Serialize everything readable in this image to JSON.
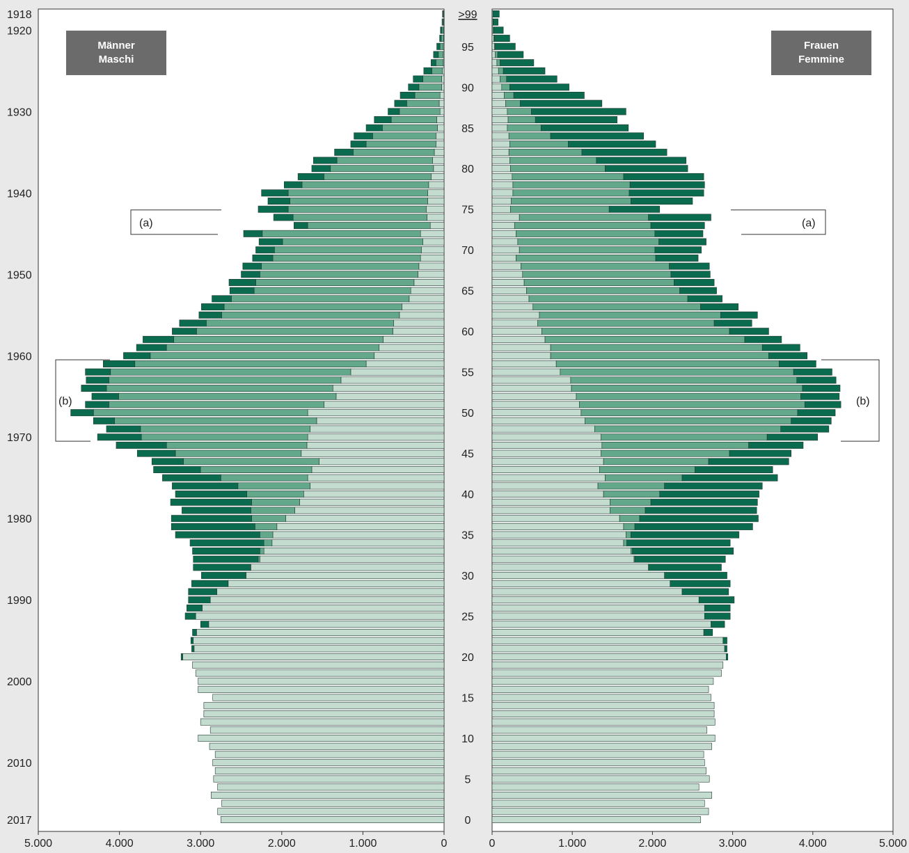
{
  "chart_data": {
    "type": "bar",
    "subtype": "population-pyramid",
    "left_label": {
      "line1": "Männer",
      "line2": "Maschi"
    },
    "right_label": {
      "line1": "Frauen",
      "line2": "Femmine"
    },
    "annotation_a": "(a)",
    "annotation_b": "(b)",
    "top_age_label": ">99",
    "birth_year_ticks": [
      "1918",
      "1920",
      "1930",
      "1940",
      "1950",
      "1960",
      "1970",
      "1980",
      "1990",
      "2000",
      "2010",
      "2017"
    ],
    "age_ticks": [
      "0",
      "5",
      "10",
      "15",
      "20",
      "25",
      "30",
      "35",
      "40",
      "45",
      "50",
      "55",
      "60",
      "65",
      "70",
      "75",
      "80",
      "85",
      "90",
      "95"
    ],
    "x_ticks_left": [
      "5.000",
      "4.000",
      "3.000",
      "2.000",
      "1.000",
      "0"
    ],
    "x_ticks_right": [
      "0",
      "1.000",
      "2.000",
      "3.000",
      "4.000",
      "5.000"
    ],
    "xlim": [
      0,
      5000
    ],
    "ages": [
      0,
      1,
      2,
      3,
      4,
      5,
      6,
      7,
      8,
      9,
      10,
      11,
      12,
      13,
      14,
      15,
      16,
      17,
      18,
      19,
      20,
      21,
      22,
      23,
      24,
      25,
      26,
      27,
      28,
      29,
      30,
      31,
      32,
      33,
      34,
      35,
      36,
      37,
      38,
      39,
      40,
      41,
      42,
      43,
      44,
      45,
      46,
      47,
      48,
      49,
      50,
      51,
      52,
      53,
      54,
      55,
      56,
      57,
      58,
      59,
      60,
      61,
      62,
      63,
      64,
      65,
      66,
      67,
      68,
      69,
      70,
      71,
      72,
      73,
      74,
      75,
      76,
      77,
      78,
      79,
      80,
      81,
      82,
      83,
      84,
      85,
      86,
      87,
      88,
      89,
      90,
      91,
      92,
      93,
      94,
      95,
      96,
      97,
      98,
      99
    ],
    "series_note": "Values per age: [light segment, mid segment, dark segment]; bar length = sum.",
    "colors": {
      "light": "#c4dbd0",
      "mid": "#64a88c",
      "dark": "#0b6b4e",
      "stroke": "#233a31",
      "background": "#e8e9e8",
      "panel": "#ffffff",
      "label_box": "#6b6b6b"
    },
    "male": [
      [
        2750,
        0,
        0
      ],
      [
        2790,
        0,
        0
      ],
      [
        2740,
        0,
        0
      ],
      [
        2870,
        0,
        0
      ],
      [
        2790,
        0,
        0
      ],
      [
        2840,
        0,
        0
      ],
      [
        2820,
        0,
        0
      ],
      [
        2850,
        0,
        0
      ],
      [
        2820,
        0,
        0
      ],
      [
        2890,
        0,
        0
      ],
      [
        3030,
        0,
        0
      ],
      [
        2880,
        0,
        0
      ],
      [
        3000,
        0,
        0
      ],
      [
        2960,
        0,
        0
      ],
      [
        2960,
        0,
        0
      ],
      [
        2850,
        0,
        0
      ],
      [
        3030,
        0,
        0
      ],
      [
        3030,
        0,
        0
      ],
      [
        3060,
        0,
        0
      ],
      [
        3100,
        0,
        0
      ],
      [
        3220,
        0,
        20
      ],
      [
        3080,
        0,
        30
      ],
      [
        3090,
        0,
        30
      ],
      [
        3050,
        0,
        50
      ],
      [
        2900,
        0,
        100
      ],
      [
        3060,
        0,
        130
      ],
      [
        2980,
        0,
        190
      ],
      [
        2880,
        0,
        270
      ],
      [
        2800,
        0,
        350
      ],
      [
        2660,
        0,
        450
      ],
      [
        2440,
        0,
        550
      ],
      [
        2380,
        10,
        700
      ],
      [
        2270,
        20,
        800
      ],
      [
        2220,
        50,
        830
      ],
      [
        2120,
        100,
        910
      ],
      [
        2110,
        160,
        1040
      ],
      [
        2060,
        270,
        1030
      ],
      [
        1950,
        420,
        990
      ],
      [
        1840,
        540,
        850
      ],
      [
        1780,
        590,
        1000
      ],
      [
        1730,
        700,
        880
      ],
      [
        1650,
        890,
        810
      ],
      [
        1680,
        1070,
        720
      ],
      [
        1630,
        1370,
        580
      ],
      [
        1540,
        1670,
        390
      ],
      [
        1760,
        1550,
        470
      ],
      [
        1690,
        1730,
        620
      ],
      [
        1680,
        2050,
        540
      ],
      [
        1650,
        2090,
        420
      ],
      [
        1570,
        2490,
        260
      ],
      [
        1680,
        2640,
        280
      ],
      [
        1480,
        2650,
        290
      ],
      [
        1330,
        2680,
        330
      ],
      [
        1370,
        2790,
        310
      ],
      [
        1270,
        2860,
        280
      ],
      [
        1150,
        2960,
        310
      ],
      [
        960,
        2850,
        390
      ],
      [
        860,
        2760,
        330
      ],
      [
        800,
        2620,
        370
      ],
      [
        750,
        2580,
        380
      ],
      [
        630,
        2420,
        300
      ],
      [
        620,
        2310,
        330
      ],
      [
        550,
        2190,
        280
      ],
      [
        520,
        2190,
        280
      ],
      [
        430,
        2190,
        240
      ],
      [
        410,
        1930,
        300
      ],
      [
        370,
        1950,
        330
      ],
      [
        320,
        1950,
        230
      ],
      [
        310,
        1940,
        230
      ],
      [
        290,
        1820,
        250
      ],
      [
        280,
        1810,
        230
      ],
      [
        260,
        1730,
        290
      ],
      [
        290,
        1950,
        230
      ],
      [
        170,
        1510,
        170
      ],
      [
        210,
        1650,
        240
      ],
      [
        220,
        1700,
        370
      ],
      [
        200,
        1700,
        270
      ],
      [
        200,
        1720,
        330
      ],
      [
        190,
        1560,
        220
      ],
      [
        160,
        1320,
        320
      ],
      [
        130,
        1270,
        230
      ],
      [
        140,
        1180,
        290
      ],
      [
        120,
        1000,
        230
      ],
      [
        100,
        860,
        190
      ],
      [
        100,
        780,
        230
      ],
      [
        80,
        680,
        200
      ],
      [
        90,
        560,
        210
      ],
      [
        50,
        500,
        140
      ],
      [
        60,
        400,
        150
      ],
      [
        50,
        310,
        180
      ],
      [
        30,
        280,
        130
      ],
      [
        30,
        230,
        120
      ],
      [
        20,
        130,
        100
      ],
      [
        10,
        90,
        60
      ],
      [
        10,
        60,
        60
      ],
      [
        10,
        40,
        40
      ],
      [
        5,
        30,
        20
      ],
      [
        5,
        20,
        20
      ],
      [
        5,
        10,
        10
      ],
      [
        5,
        10,
        5
      ]
    ],
    "female": [
      [
        2600,
        0,
        0
      ],
      [
        2700,
        0,
        0
      ],
      [
        2650,
        0,
        0
      ],
      [
        2740,
        0,
        0
      ],
      [
        2580,
        0,
        0
      ],
      [
        2710,
        0,
        0
      ],
      [
        2670,
        0,
        0
      ],
      [
        2650,
        0,
        0
      ],
      [
        2640,
        0,
        0
      ],
      [
        2740,
        0,
        0
      ],
      [
        2780,
        0,
        0
      ],
      [
        2680,
        0,
        0
      ],
      [
        2780,
        0,
        0
      ],
      [
        2770,
        0,
        0
      ],
      [
        2770,
        0,
        0
      ],
      [
        2730,
        0,
        0
      ],
      [
        2700,
        0,
        0
      ],
      [
        2760,
        0,
        0
      ],
      [
        2860,
        0,
        0
      ],
      [
        2880,
        0,
        0
      ],
      [
        2920,
        0,
        20
      ],
      [
        2900,
        0,
        30
      ],
      [
        2880,
        0,
        50
      ],
      [
        2640,
        0,
        110
      ],
      [
        2730,
        0,
        170
      ],
      [
        2650,
        0,
        320
      ],
      [
        2650,
        0,
        320
      ],
      [
        2580,
        0,
        440
      ],
      [
        2370,
        0,
        580
      ],
      [
        2220,
        0,
        750
      ],
      [
        2150,
        0,
        780
      ],
      [
        1950,
        0,
        910
      ],
      [
        1770,
        10,
        1130
      ],
      [
        1730,
        20,
        1260
      ],
      [
        1640,
        40,
        1290
      ],
      [
        1670,
        60,
        1350
      ],
      [
        1640,
        140,
        1470
      ],
      [
        1590,
        250,
        1480
      ],
      [
        1470,
        440,
        1390
      ],
      [
        1470,
        510,
        1330
      ],
      [
        1390,
        700,
        1240
      ],
      [
        1320,
        830,
        1220
      ],
      [
        1410,
        960,
        1190
      ],
      [
        1340,
        1190,
        970
      ],
      [
        1390,
        1310,
        1000
      ],
      [
        1360,
        1600,
        770
      ],
      [
        1370,
        1830,
        680
      ],
      [
        1360,
        2070,
        630
      ],
      [
        1280,
        2320,
        600
      ],
      [
        1160,
        2570,
        500
      ],
      [
        1110,
        2700,
        470
      ],
      [
        1090,
        2810,
        450
      ],
      [
        1050,
        2800,
        480
      ],
      [
        990,
        2880,
        470
      ],
      [
        980,
        2820,
        490
      ],
      [
        850,
        2910,
        480
      ],
      [
        800,
        2780,
        460
      ],
      [
        730,
        2720,
        480
      ],
      [
        730,
        2640,
        470
      ],
      [
        660,
        2490,
        460
      ],
      [
        620,
        2340,
        490
      ],
      [
        570,
        2200,
        470
      ],
      [
        590,
        2260,
        460
      ],
      [
        510,
        2090,
        470
      ],
      [
        460,
        1980,
        430
      ],
      [
        430,
        1910,
        460
      ],
      [
        400,
        1870,
        500
      ],
      [
        380,
        1850,
        490
      ],
      [
        360,
        1850,
        500
      ],
      [
        300,
        1740,
        530
      ],
      [
        340,
        1690,
        580
      ],
      [
        320,
        1760,
        590
      ],
      [
        300,
        1730,
        600
      ],
      [
        280,
        1700,
        670
      ],
      [
        340,
        1610,
        780
      ],
      [
        230,
        1230,
        630
      ],
      [
        240,
        1490,
        770
      ],
      [
        260,
        1450,
        930
      ],
      [
        260,
        1460,
        930
      ],
      [
        250,
        1390,
        1000
      ],
      [
        230,
        1180,
        1030
      ],
      [
        220,
        1080,
        1120
      ],
      [
        210,
        910,
        1060
      ],
      [
        220,
        730,
        1090
      ],
      [
        210,
        520,
        1160
      ],
      [
        190,
        420,
        1090
      ],
      [
        200,
        340,
        1020
      ],
      [
        190,
        300,
        1180
      ],
      [
        170,
        180,
        1020
      ],
      [
        150,
        120,
        880
      ],
      [
        120,
        100,
        740
      ],
      [
        100,
        80,
        630
      ],
      [
        80,
        60,
        520
      ],
      [
        60,
        40,
        420
      ],
      [
        40,
        30,
        320
      ],
      [
        30,
        10,
        250
      ],
      [
        20,
        10,
        190
      ],
      [
        10,
        10,
        120
      ],
      [
        10,
        5,
        60
      ],
      [
        10,
        0,
        80
      ]
    ]
  }
}
